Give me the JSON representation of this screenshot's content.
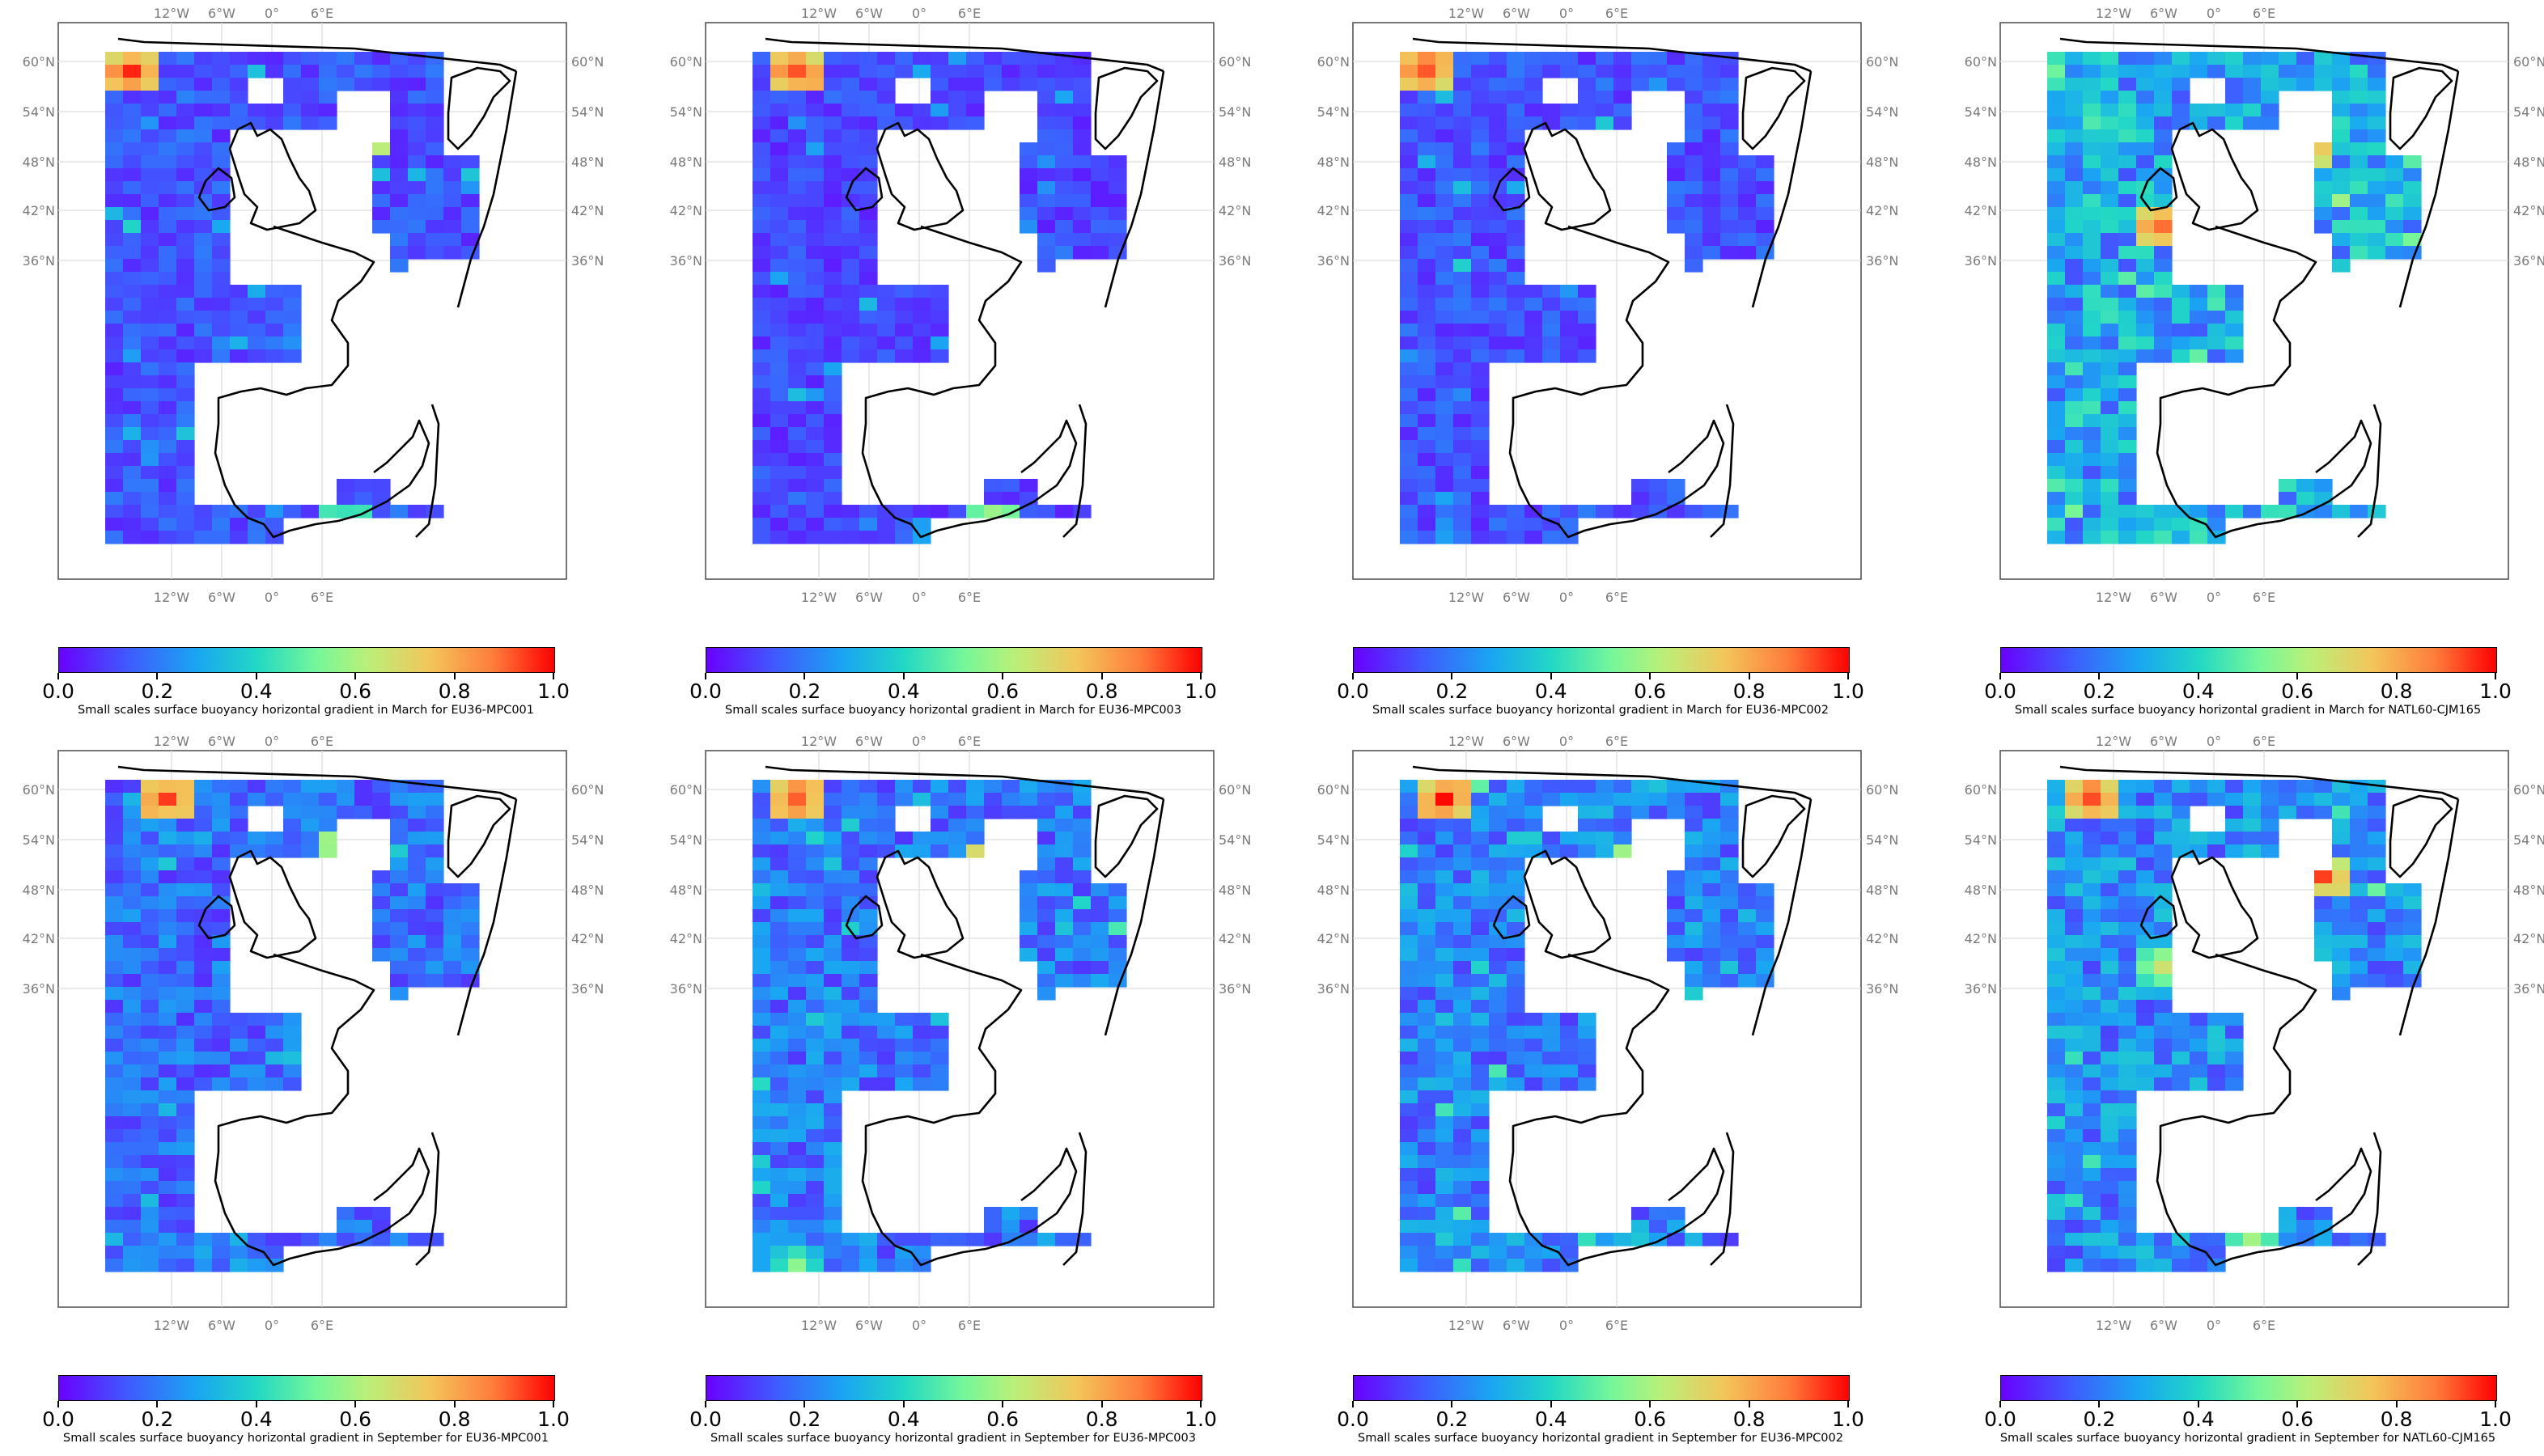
{
  "colorbar": {
    "ticks": [
      "0.0",
      "0.2",
      "0.4",
      "0.6",
      "0.8",
      "1.0"
    ],
    "cmap": [
      "#6a00ff",
      "#3f5bff",
      "#1aa6f2",
      "#22d8c5",
      "#75f79a",
      "#b8f07a",
      "#f3c55a",
      "#ff7a3a",
      "#ff0000"
    ],
    "range": [
      0,
      1
    ]
  },
  "axes": {
    "lon_labels": [
      "12°W",
      "6°W",
      "0°",
      "6°E"
    ],
    "lat_labels": [
      "60°N",
      "54°N",
      "48°N",
      "42°N",
      "36°N"
    ]
  },
  "panels": [
    {
      "caption": "Small scales surface buoyancy horizontal gradient in March for EU36-MPC001",
      "seed": 11,
      "base": 0.12,
      "hot": [
        [
          2,
          2,
          0.95
        ],
        [
          15,
          7,
          0.8
        ],
        [
          21,
          28,
          0.55
        ],
        [
          14,
          37,
          0.6
        ]
      ]
    },
    {
      "caption": "Small scales surface buoyancy horizontal gradient in March for EU36-MPC003",
      "seed": 23,
      "base": 0.1,
      "hot": [
        [
          3,
          2,
          0.95
        ],
        [
          18,
          24,
          0.9
        ],
        [
          21,
          25,
          0.85
        ],
        [
          14,
          37,
          0.7
        ]
      ]
    },
    {
      "caption": "Small scales surface buoyancy horizontal gradient in March for EU36-MPC002",
      "seed": 37,
      "base": 0.12,
      "hot": [
        [
          2,
          2,
          0.95
        ],
        [
          14,
          38,
          0.6
        ],
        [
          20,
          24,
          0.5
        ]
      ]
    },
    {
      "caption": "Small scales surface buoyancy horizontal gradient in March for NATL60-CJM165",
      "seed": 41,
      "base": 0.28,
      "hot": [
        [
          7,
          14,
          0.9
        ],
        [
          15,
          8,
          0.85
        ],
        [
          18,
          24,
          0.9
        ],
        [
          20,
          25,
          0.85
        ],
        [
          22,
          8,
          0.7
        ]
      ]
    },
    {
      "caption": "Small scales surface buoyancy horizontal gradient in September for EU36-MPC001",
      "seed": 53,
      "base": 0.16,
      "hot": [
        [
          4,
          2,
          0.95
        ],
        [
          14,
          6,
          0.75
        ],
        [
          20,
          23,
          0.9
        ],
        [
          18,
          24,
          0.9
        ],
        [
          14,
          29,
          0.6
        ]
      ]
    },
    {
      "caption": "Small scales surface buoyancy horizontal gradient in September for EU36-MPC003",
      "seed": 67,
      "base": 0.18,
      "hot": [
        [
          3,
          2,
          0.95
        ],
        [
          14,
          7,
          0.85
        ],
        [
          17,
          24,
          0.9
        ],
        [
          14,
          29,
          0.55
        ],
        [
          3,
          38,
          0.55
        ]
      ]
    },
    {
      "caption": "Small scales surface buoyancy horizontal gradient in September for EU36-MPC002",
      "seed": 79,
      "base": 0.2,
      "hot": [
        [
          3,
          2,
          0.95
        ],
        [
          14,
          7,
          0.8
        ],
        [
          17,
          24,
          0.9
        ],
        [
          18,
          25,
          0.85
        ],
        [
          14,
          29,
          0.6
        ]
      ]
    },
    {
      "caption": "Small scales surface buoyancy horizontal gradient in September for NATL60-CJM165",
      "seed": 97,
      "base": 0.22,
      "hot": [
        [
          3,
          2,
          0.95
        ],
        [
          7,
          15,
          0.65
        ],
        [
          16,
          8,
          0.9
        ],
        [
          19,
          24,
          0.9
        ],
        [
          21,
          24,
          0.9
        ],
        [
          12,
          36,
          0.55
        ]
      ]
    }
  ]
}
